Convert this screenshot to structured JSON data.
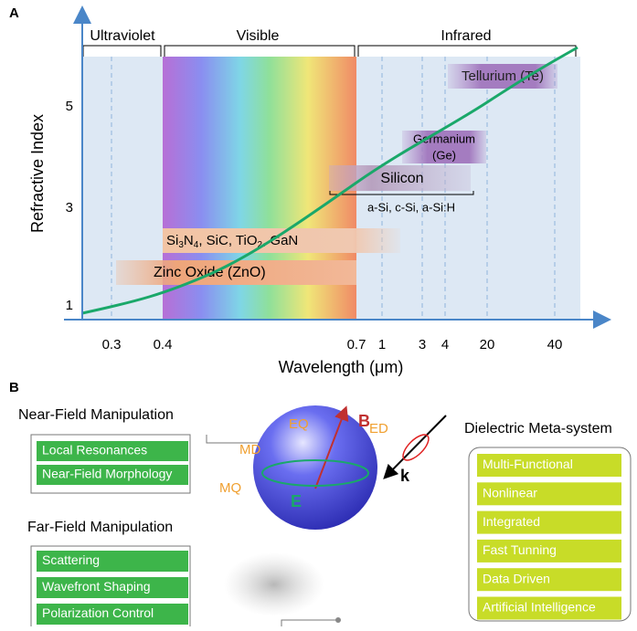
{
  "panel_a": {
    "label": "A",
    "regions": [
      "Ultraviolet",
      "Visible",
      "Infrared"
    ],
    "y_axis_label": "Refractive Index",
    "x_axis_label": "Wavelength (μm)",
    "y_ticks": [
      "5",
      "3",
      "1"
    ],
    "x_ticks": [
      "0.3",
      "0.4",
      "0.7",
      "1",
      "3",
      "4",
      "20",
      "40"
    ],
    "materials": {
      "tellurium": "Tellurium (Te)",
      "germanium": [
        "Germanium",
        "(Ge)"
      ],
      "silicon": "Silicon",
      "silicon_types": "a-Si, c-Si, a-Si:H",
      "nitrides": [
        "Si",
        "3",
        "N",
        "4",
        ", SiC, TiO",
        "2",
        ", GaN"
      ],
      "zinc_oxide": "Zinc Oxide (ZnO)"
    }
  },
  "panel_b": {
    "label": "B",
    "near_field": {
      "title": "Near-Field Manipulation",
      "items": [
        "Local Resonances",
        "Near-Field Morphology"
      ]
    },
    "far_field": {
      "title": "Far-Field Manipulation",
      "items": [
        "Scattering",
        "Wavefront Shaping",
        "Polarization Control"
      ]
    },
    "meta_system": {
      "title": "Dielectric Meta-system",
      "items": [
        "Multi-Functional",
        "Nonlinear",
        "Integrated",
        "Fast Tunning",
        "Data Driven",
        "Artificial Intelligence"
      ]
    },
    "modes": [
      "MD",
      "EQ",
      "ED",
      "MQ"
    ],
    "fields": {
      "b": "B",
      "e": "E",
      "k": "k"
    }
  }
}
